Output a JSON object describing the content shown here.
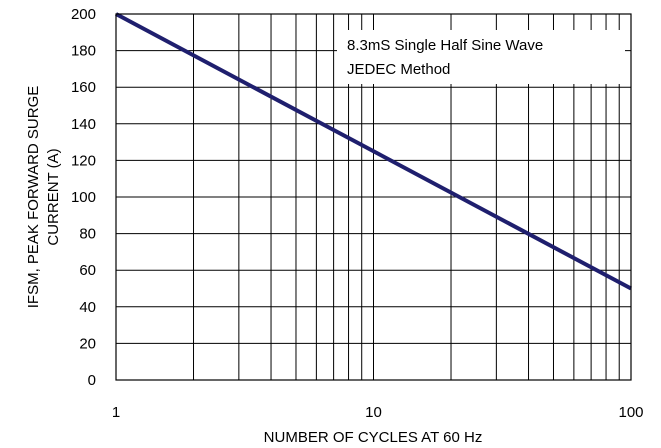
{
  "chart_data": {
    "type": "line",
    "title": "",
    "xlabel": "NUMBER OF CYCLES AT 60 Hz",
    "ylabel_lines": [
      "IFSM, PEAK FORWARD SURGE",
      "CURRENT (A)"
    ],
    "x_scale": "log",
    "xlim": [
      1,
      100
    ],
    "ylim": [
      0,
      200
    ],
    "x_ticks": [
      "1",
      "10",
      "100"
    ],
    "y_ticks": [
      "0",
      "20",
      "40",
      "60",
      "80",
      "100",
      "120",
      "140",
      "160",
      "180",
      "200"
    ],
    "grid": true,
    "annotation_lines": [
      "8.3mS Single Half Sine Wave",
      "JEDEC Method"
    ],
    "series": [
      {
        "x": [
          1,
          100
        ],
        "y": [
          200,
          50
        ]
      }
    ],
    "colors": {
      "line": "#1f1f6e",
      "grid": "#000000",
      "annotation_bg": "#ffffff"
    }
  }
}
